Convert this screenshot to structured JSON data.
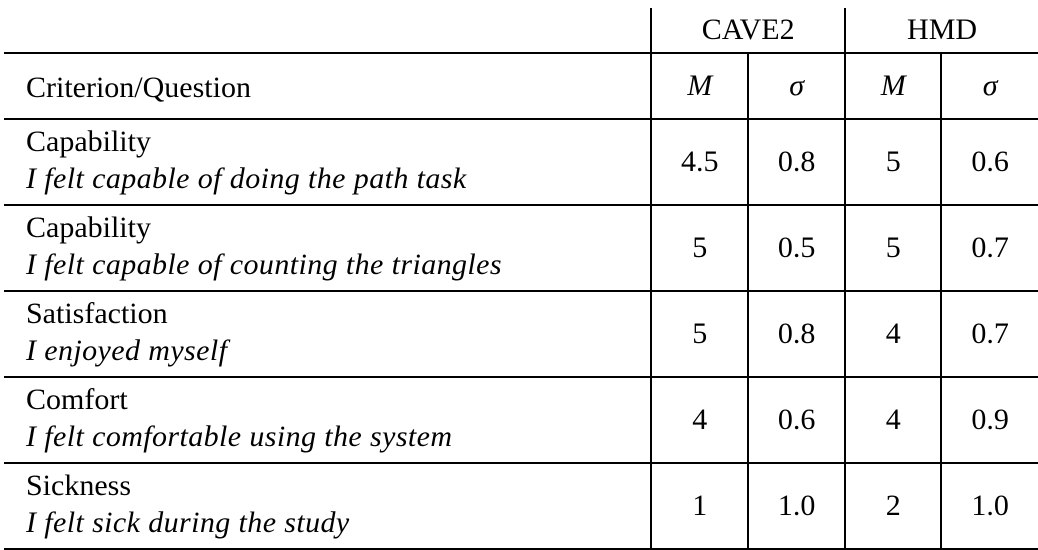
{
  "header": {
    "groups": [
      "CAVE2",
      "HMD"
    ],
    "criterion_label": "Criterion/Question",
    "stat_mean": "M",
    "stat_sd": "σ"
  },
  "rows": [
    {
      "criterion": "Capability",
      "question": "I felt capable of doing the path task",
      "cave2_mean": "4.5",
      "cave2_sd": "0.8",
      "hmd_mean": "5",
      "hmd_sd": "0.6"
    },
    {
      "criterion": "Capability",
      "question": "I felt capable of counting the triangles",
      "cave2_mean": "5",
      "cave2_sd": "0.5",
      "hmd_mean": "5",
      "hmd_sd": "0.7"
    },
    {
      "criterion": "Satisfaction",
      "question": "I enjoyed myself",
      "cave2_mean": "5",
      "cave2_sd": "0.8",
      "hmd_mean": "4",
      "hmd_sd": "0.7"
    },
    {
      "criterion": "Comfort",
      "question": "I felt comfortable using the system",
      "cave2_mean": "4",
      "cave2_sd": "0.6",
      "hmd_mean": "4",
      "hmd_sd": "0.9"
    },
    {
      "criterion": "Sickness",
      "question": "I felt sick during the study",
      "cave2_mean": "1",
      "cave2_sd": "1.0",
      "hmd_mean": "2",
      "hmd_sd": "1.0"
    }
  ]
}
